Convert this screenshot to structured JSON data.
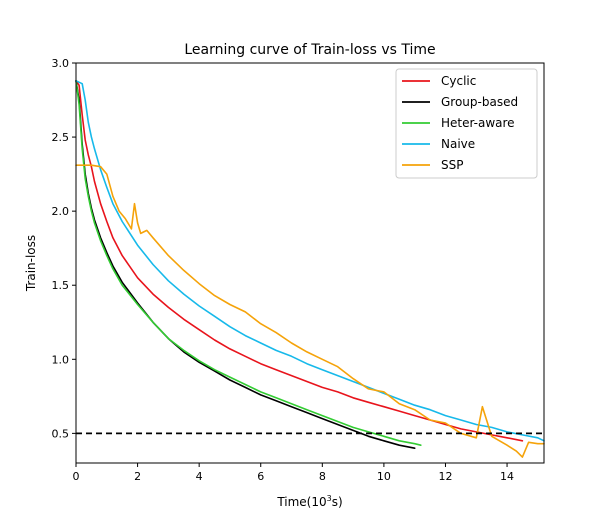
{
  "chart_data": {
    "type": "line",
    "title": "Learning curve of Train-loss vs Time",
    "xlabel_base": "Time(10",
    "xlabel_sup": "3",
    "xlabel_tail": "s)",
    "ylabel": "Train-loss",
    "xlim": [
      0,
      15.2
    ],
    "ylim": [
      0.3,
      3.0
    ],
    "xticks": [
      0,
      2,
      4,
      6,
      8,
      10,
      12,
      14
    ],
    "yticks": [
      0.5,
      1.0,
      1.5,
      2.0,
      2.5,
      3.0
    ],
    "xtick_labels": [
      "0",
      "2",
      "4",
      "6",
      "8",
      "10",
      "12",
      "14"
    ],
    "ytick_labels": [
      "0.5",
      "1.0",
      "1.5",
      "2.0",
      "2.5",
      "3.0"
    ],
    "grid": false,
    "legend_position": "top-right",
    "reference_line": {
      "y": 0.5,
      "style": "dashed",
      "color": "#000000"
    },
    "series": [
      {
        "name": "Cyclic",
        "color": "#e8141c",
        "x": [
          0,
          0.1,
          0.2,
          0.3,
          0.4,
          0.5,
          0.6,
          0.8,
          1.0,
          1.2,
          1.5,
          2.0,
          2.5,
          3.0,
          3.5,
          4.0,
          4.5,
          5.0,
          5.5,
          6.0,
          6.5,
          7.0,
          7.5,
          8.0,
          8.5,
          9.0,
          9.5,
          10.0,
          10.5,
          11.0,
          11.5,
          12.0,
          12.5,
          13.0,
          13.5,
          14.0,
          14.5
        ],
        "y": [
          2.88,
          2.85,
          2.65,
          2.48,
          2.38,
          2.3,
          2.2,
          2.05,
          1.93,
          1.82,
          1.7,
          1.55,
          1.44,
          1.35,
          1.27,
          1.2,
          1.13,
          1.07,
          1.02,
          0.97,
          0.93,
          0.89,
          0.85,
          0.81,
          0.78,
          0.74,
          0.71,
          0.68,
          0.65,
          0.62,
          0.59,
          0.56,
          0.53,
          0.51,
          0.49,
          0.47,
          0.45
        ]
      },
      {
        "name": "Group-based",
        "color": "#000000",
        "x": [
          0,
          0.1,
          0.2,
          0.3,
          0.4,
          0.5,
          0.6,
          0.8,
          1.0,
          1.2,
          1.5,
          2.0,
          2.5,
          3.0,
          3.5,
          4.0,
          4.5,
          5.0,
          5.5,
          6.0,
          6.5,
          7.0,
          7.5,
          8.0,
          8.5,
          9.0,
          9.5,
          10.0,
          10.5,
          11.0
        ],
        "y": [
          2.88,
          2.75,
          2.45,
          2.25,
          2.12,
          2.02,
          1.94,
          1.82,
          1.72,
          1.63,
          1.52,
          1.38,
          1.25,
          1.14,
          1.05,
          0.98,
          0.92,
          0.86,
          0.81,
          0.76,
          0.72,
          0.68,
          0.64,
          0.6,
          0.56,
          0.52,
          0.48,
          0.45,
          0.42,
          0.4
        ]
      },
      {
        "name": "Heter-aware",
        "color": "#33cc33",
        "x": [
          0,
          0.1,
          0.2,
          0.3,
          0.4,
          0.5,
          0.6,
          0.8,
          1.0,
          1.2,
          1.5,
          2.0,
          2.5,
          3.0,
          3.5,
          4.0,
          4.5,
          5.0,
          5.5,
          6.0,
          6.5,
          7.0,
          7.5,
          8.0,
          8.5,
          9.0,
          9.5,
          10.0,
          10.5,
          11.0,
          11.2
        ],
        "y": [
          2.88,
          2.72,
          2.42,
          2.22,
          2.1,
          2.0,
          1.92,
          1.8,
          1.7,
          1.61,
          1.5,
          1.37,
          1.25,
          1.14,
          1.06,
          0.99,
          0.93,
          0.88,
          0.83,
          0.78,
          0.74,
          0.7,
          0.66,
          0.62,
          0.58,
          0.54,
          0.51,
          0.48,
          0.45,
          0.43,
          0.42
        ]
      },
      {
        "name": "Naive",
        "color": "#17b9ea",
        "x": [
          0,
          0.2,
          0.3,
          0.4,
          0.5,
          0.6,
          0.8,
          1.0,
          1.2,
          1.5,
          2.0,
          2.5,
          3.0,
          3.5,
          4.0,
          4.5,
          5.0,
          5.5,
          6.0,
          6.5,
          7.0,
          7.5,
          8.0,
          8.5,
          9.0,
          9.5,
          10.0,
          10.5,
          11.0,
          11.5,
          12.0,
          12.5,
          13.0,
          13.5,
          14.0,
          14.5,
          15.0,
          15.2
        ],
        "y": [
          2.88,
          2.86,
          2.75,
          2.6,
          2.5,
          2.42,
          2.28,
          2.16,
          2.05,
          1.93,
          1.77,
          1.64,
          1.53,
          1.44,
          1.36,
          1.29,
          1.22,
          1.16,
          1.11,
          1.06,
          1.02,
          0.97,
          0.93,
          0.89,
          0.85,
          0.81,
          0.77,
          0.73,
          0.69,
          0.66,
          0.62,
          0.59,
          0.56,
          0.54,
          0.51,
          0.49,
          0.47,
          0.45
        ]
      },
      {
        "name": "SSP",
        "color": "#f5a30a",
        "x": [
          0,
          0.5,
          0.8,
          1.0,
          1.2,
          1.4,
          1.6,
          1.8,
          1.9,
          2.0,
          2.1,
          2.3,
          2.5,
          3.0,
          3.5,
          4.0,
          4.5,
          5.0,
          5.5,
          6.0,
          6.5,
          7.0,
          7.5,
          8.0,
          8.5,
          9.0,
          9.5,
          10.0,
          10.5,
          11.0,
          11.5,
          12.0,
          12.5,
          13.0,
          13.2,
          13.5,
          14.0,
          14.3,
          14.5,
          14.7,
          15.0,
          15.2
        ],
        "y": [
          2.31,
          2.31,
          2.3,
          2.25,
          2.1,
          2.0,
          1.95,
          1.88,
          2.05,
          1.92,
          1.85,
          1.87,
          1.82,
          1.7,
          1.6,
          1.51,
          1.43,
          1.37,
          1.32,
          1.24,
          1.18,
          1.11,
          1.05,
          1.0,
          0.95,
          0.87,
          0.8,
          0.78,
          0.7,
          0.66,
          0.59,
          0.57,
          0.5,
          0.47,
          0.68,
          0.48,
          0.42,
          0.38,
          0.34,
          0.44,
          0.43,
          0.43
        ]
      }
    ]
  }
}
